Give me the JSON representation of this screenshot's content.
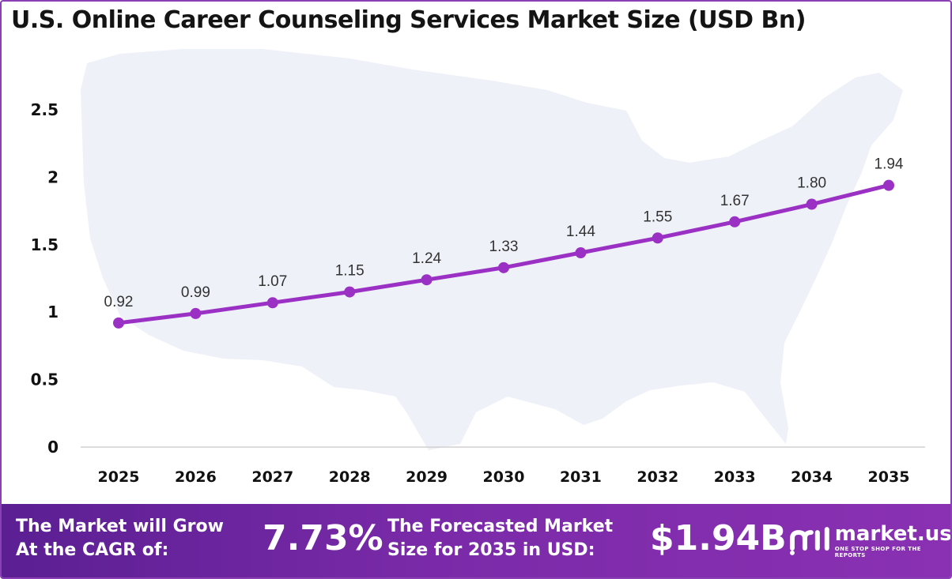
{
  "title": "U.S. Online Career Counseling Services Market Size (USD Bn)",
  "chart_data": {
    "type": "line",
    "title": "U.S. Online Career Counseling Services Market Size (USD Bn)",
    "categories": [
      "2025",
      "2026",
      "2027",
      "2028",
      "2029",
      "2030",
      "2031",
      "2032",
      "2033",
      "2034",
      "2035"
    ],
    "values": [
      0.92,
      0.99,
      1.07,
      1.15,
      1.24,
      1.33,
      1.44,
      1.55,
      1.67,
      1.8,
      1.94
    ],
    "value_labels": [
      "0.92",
      "0.99",
      "1.07",
      "1.15",
      "1.24",
      "1.33",
      "1.44",
      "1.55",
      "1.67",
      "1.80",
      "1.94"
    ],
    "y_ticks": [
      "0",
      "0.5",
      "1",
      "1.5",
      "2",
      "2.5"
    ],
    "ylim": [
      0,
      2.5
    ],
    "grid": false,
    "legend": "none",
    "line_color": "#9b30c4",
    "background_shape": "us-map-silhouette",
    "background_color": "#eef1f8"
  },
  "footer": {
    "cagr_label": "The Market will Grow At the CAGR of:",
    "cagr_value": "7.73%",
    "forecast_label": "The Forecasted Market Size for 2035 in USD:",
    "forecast_value": "$1.94B",
    "logo_name": "market.us",
    "logo_tagline": "ONE STOP SHOP FOR THE REPORTS"
  }
}
